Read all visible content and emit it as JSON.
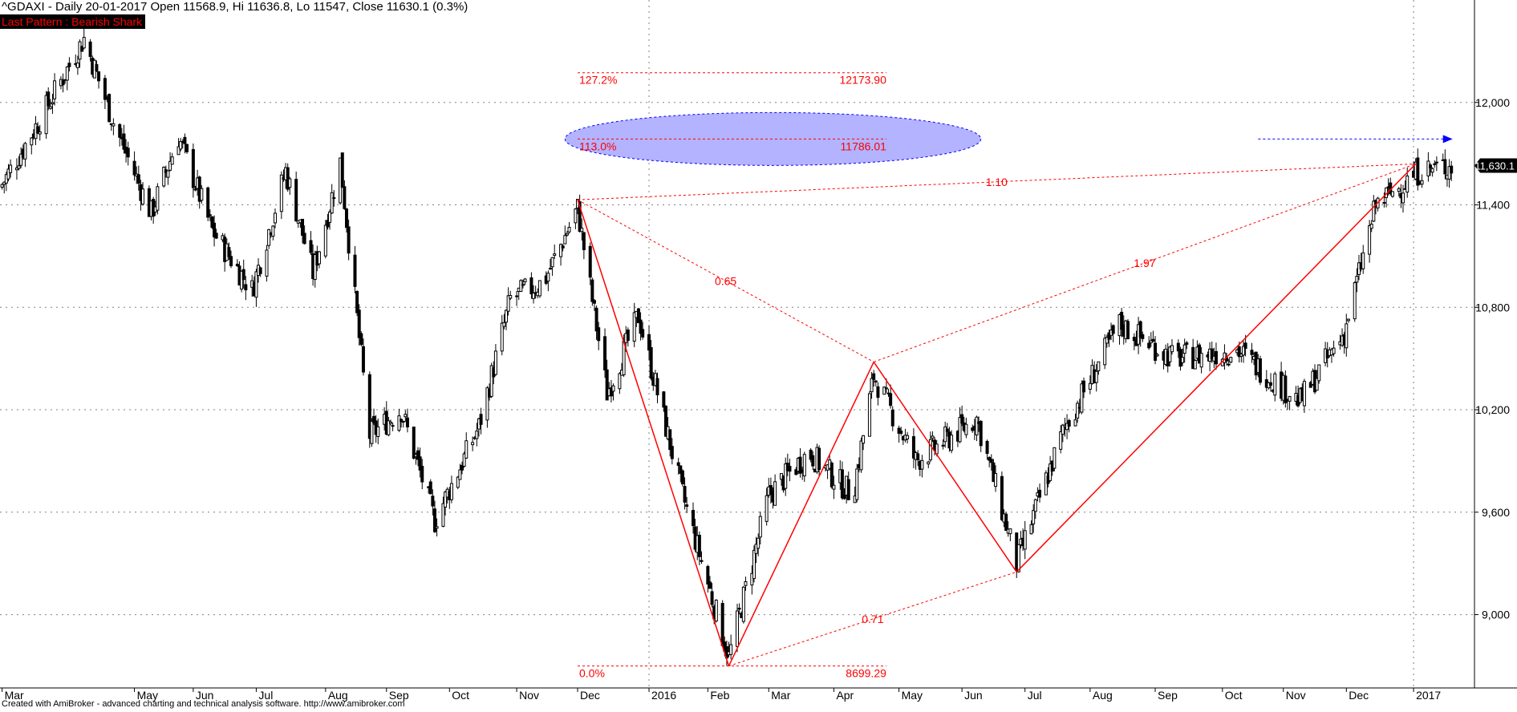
{
  "header": {
    "title": "^GDAXI - Daily 20-01-2017 Open 11568.9, Hi 11636.8, Lo 11547, Close 11630.1 (0.3%)",
    "pattern_label": "Last Pattern : Bearish Shark"
  },
  "footer": {
    "text": "Created with AmiBroker - advanced charting and technical analysis software. http://www.amibroker.com"
  },
  "chart_data": {
    "type": "candlestick",
    "symbol": "^GDAXI",
    "interval": "Daily",
    "last_bar": {
      "date": "20-01-2017",
      "open": 11568.9,
      "high": 11636.8,
      "low": 11547,
      "close": 11630.1,
      "change_pct": 0.3
    },
    "last_price_label": "11,630.1",
    "y_axis": {
      "ylim": [
        8580,
        12600
      ],
      "ticks": [
        9000,
        9600,
        10200,
        10800,
        11400,
        12000
      ],
      "tick_labels": [
        "9,000",
        "9,600",
        "10,200",
        "10,800",
        "11,400",
        "12,000"
      ],
      "grid": true
    },
    "x_axis": {
      "start": "2015-03-01",
      "end": "2017-01-31",
      "ticks": [
        {
          "label": "Mar",
          "date": "2015-03-02"
        },
        {
          "label": "May",
          "date": "2015-05-04"
        },
        {
          "label": "Jun",
          "date": "2015-06-01"
        },
        {
          "label": "Jul",
          "date": "2015-07-01"
        },
        {
          "label": "Aug",
          "date": "2015-08-03"
        },
        {
          "label": "Sep",
          "date": "2015-09-01"
        },
        {
          "label": "Oct",
          "date": "2015-10-01"
        },
        {
          "label": "Nov",
          "date": "2015-11-02"
        },
        {
          "label": "Dec",
          "date": "2015-12-01"
        },
        {
          "label": "2016",
          "date": "2016-01-04"
        },
        {
          "label": "Feb",
          "date": "2016-02-01"
        },
        {
          "label": "Mar",
          "date": "2016-03-01"
        },
        {
          "label": "Apr",
          "date": "2016-04-01"
        },
        {
          "label": "May",
          "date": "2016-05-02"
        },
        {
          "label": "Jun",
          "date": "2016-06-01"
        },
        {
          "label": "Jul",
          "date": "2016-07-01"
        },
        {
          "label": "Aug",
          "date": "2016-08-01"
        },
        {
          "label": "Sep",
          "date": "2016-09-01"
        },
        {
          "label": "Oct",
          "date": "2016-10-03"
        },
        {
          "label": "Nov",
          "date": "2016-11-01"
        },
        {
          "label": "Dec",
          "date": "2016-12-01"
        },
        {
          "label": "2017",
          "date": "2017-01-02"
        }
      ],
      "vertical_grid_at": [
        "2016-01-04",
        "2017-01-02"
      ]
    },
    "price_path": [
      {
        "date": "2015-03-01",
        "value": 11500
      },
      {
        "date": "2015-03-20",
        "value": 11900
      },
      {
        "date": "2015-04-10",
        "value": 12375
      },
      {
        "date": "2015-04-25",
        "value": 11850
      },
      {
        "date": "2015-05-12",
        "value": 11350
      },
      {
        "date": "2015-05-25",
        "value": 11800
      },
      {
        "date": "2015-06-10",
        "value": 11250
      },
      {
        "date": "2015-06-29",
        "value": 10900
      },
      {
        "date": "2015-07-15",
        "value": 11600
      },
      {
        "date": "2015-07-28",
        "value": 11000
      },
      {
        "date": "2015-08-10",
        "value": 11650
      },
      {
        "date": "2015-08-24",
        "value": 10050
      },
      {
        "date": "2015-09-08",
        "value": 10200
      },
      {
        "date": "2015-09-24",
        "value": 9550
      },
      {
        "date": "2015-10-15",
        "value": 10100
      },
      {
        "date": "2015-10-30",
        "value": 10850
      },
      {
        "date": "2015-11-15",
        "value": 10950
      },
      {
        "date": "2015-12-01",
        "value": 11380
      },
      {
        "date": "2015-12-15",
        "value": 10300
      },
      {
        "date": "2015-12-30",
        "value": 10750
      },
      {
        "date": "2016-01-20",
        "value": 9700
      },
      {
        "date": "2016-02-11",
        "value": 8750
      },
      {
        "date": "2016-03-01",
        "value": 9700
      },
      {
        "date": "2016-03-20",
        "value": 9950
      },
      {
        "date": "2016-04-10",
        "value": 9700
      },
      {
        "date": "2016-04-20",
        "value": 10400
      },
      {
        "date": "2016-05-10",
        "value": 9900
      },
      {
        "date": "2016-06-08",
        "value": 10150
      },
      {
        "date": "2016-06-27",
        "value": 9300
      },
      {
        "date": "2016-07-20",
        "value": 10100
      },
      {
        "date": "2016-08-15",
        "value": 10700
      },
      {
        "date": "2016-09-10",
        "value": 10500
      },
      {
        "date": "2016-10-10",
        "value": 10550
      },
      {
        "date": "2016-11-09",
        "value": 10250
      },
      {
        "date": "2016-11-30",
        "value": 10650
      },
      {
        "date": "2016-12-15",
        "value": 11400
      },
      {
        "date": "2017-01-05",
        "value": 11600
      },
      {
        "date": "2017-01-20",
        "value": 11630
      }
    ],
    "pattern": {
      "name": "Bearish Shark",
      "points": [
        {
          "date": "2015-12-01",
          "value": 11430
        },
        {
          "date": "2016-02-11",
          "value": 8699.29
        },
        {
          "date": "2016-04-20",
          "value": 10480
        },
        {
          "date": "2016-06-27",
          "value": 9250
        },
        {
          "date": "2017-01-03",
          "value": 11640
        }
      ],
      "ratios": [
        {
          "label": "0.65",
          "from": 0,
          "to": 2
        },
        {
          "label": "0.71",
          "from": 1,
          "to": 3
        },
        {
          "label": "1.97",
          "from": 2,
          "to": 4
        },
        {
          "label": "1.10",
          "from": 0,
          "to": 4
        }
      ],
      "fib_levels": [
        {
          "pct": "127.2%",
          "value": "12173.90",
          "y": 12173.9
        },
        {
          "pct": "113.0%",
          "value": "11786.01",
          "y": 11786.01
        },
        {
          "pct": "0.0%",
          "value": "8699.29",
          "y": 8699.29
        }
      ],
      "target_zone_center": 11786,
      "target_arrow_value": 11786
    },
    "colors": {
      "up_candle": "#ffffff",
      "down_candle": "#000000",
      "pattern": "#ff0000",
      "target_zone_fill": "#b3b3ff",
      "target_zone_stroke": "#0000ff",
      "target_arrow": "#0000ff",
      "grid": "#808080",
      "price_label_bg": "#000000",
      "price_label_text": "#ffffff"
    }
  }
}
